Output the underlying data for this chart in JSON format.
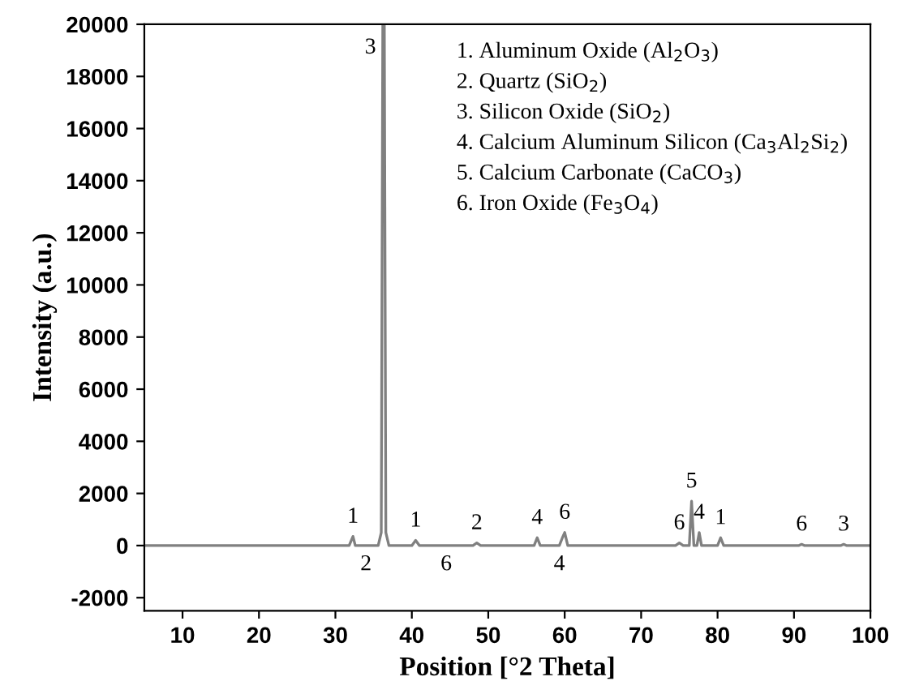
{
  "chart_data": {
    "type": "line",
    "xlabel": "Position [°2 Theta]",
    "ylabel": "Intensity (a.u.)",
    "x": [
      5,
      10,
      15,
      20,
      25,
      30,
      31.8,
      32.3,
      32.6,
      33.0,
      34.0,
      35.6,
      36.0,
      36.2,
      36.4,
      36.6,
      37.0,
      40.0,
      40.5,
      41.0,
      44.5,
      48.0,
      48.5,
      49.0,
      56.0,
      56.4,
      56.8,
      59.3,
      59.7,
      60.0,
      60.4,
      74.5,
      75.0,
      75.5,
      76.3,
      76.6,
      76.9,
      77.3,
      77.6,
      77.9,
      78.3,
      80.0,
      80.4,
      80.8,
      90.6,
      91.0,
      91.4,
      96.1,
      96.5,
      96.9,
      100
    ],
    "series": [
      {
        "color": "#808080",
        "values": [
          0,
          0,
          0,
          0,
          0,
          0,
          0,
          350,
          0,
          0,
          0,
          0,
          500,
          20000,
          20000,
          500,
          0,
          0,
          200,
          0,
          0,
          0,
          100,
          0,
          0,
          300,
          0,
          0,
          300,
          500,
          0,
          0,
          100,
          0,
          0,
          1700,
          0,
          0,
          500,
          0,
          0,
          0,
          300,
          0,
          0,
          50,
          0,
          0,
          50,
          0,
          0
        ]
      }
    ],
    "xlim": [
      5,
      100
    ],
    "ylim": [
      -2500,
      20000
    ],
    "xticks": [
      10,
      20,
      30,
      40,
      50,
      60,
      70,
      80,
      90,
      100
    ],
    "yticks": [
      -2000,
      0,
      2000,
      4000,
      6000,
      8000,
      10000,
      12000,
      14000,
      16000,
      18000,
      20000
    ],
    "grid": false,
    "marker": "none",
    "line_style": "solid",
    "annotations": [
      {
        "text": "1",
        "x": 32.3,
        "y": 350
      },
      {
        "text": "2",
        "x": 34.0,
        "y": 0
      },
      {
        "text": "3",
        "x": 36.2,
        "y": 20000
      },
      {
        "text": "1",
        "x": 40.5,
        "y": 200
      },
      {
        "text": "6",
        "x": 44.5,
        "y": 0
      },
      {
        "text": "2",
        "x": 48.5,
        "y": 100
      },
      {
        "text": "4",
        "x": 56.4,
        "y": 300
      },
      {
        "text": "4",
        "x": 59.3,
        "y": 0
      },
      {
        "text": "6",
        "x": 60.0,
        "y": 500
      },
      {
        "text": "6",
        "x": 75.0,
        "y": 100
      },
      {
        "text": "5",
        "x": 76.6,
        "y": 1700
      },
      {
        "text": "4",
        "x": 77.6,
        "y": 500
      },
      {
        "text": "1",
        "x": 80.4,
        "y": 300
      },
      {
        "text": "6",
        "x": 91.0,
        "y": 50
      },
      {
        "text": "3",
        "x": 96.5,
        "y": 50
      },
      "1. Aluminum Oxide (Al$_{2}$O$_{3}$)",
      "2. Quartz (SiO$_{2}$)",
      "3. Silicon Oxide (SiO$_{2}$)",
      "4. Calcium Aluminum Silicon (Ca$_{3}$Al$_{2}$Si$_{2}$)",
      "5. Calcium Carbonate (CaCO$_{3}$)",
      "6. Iron Oxide (Fe$_{3}$O$_{4}$)"
    ]
  }
}
